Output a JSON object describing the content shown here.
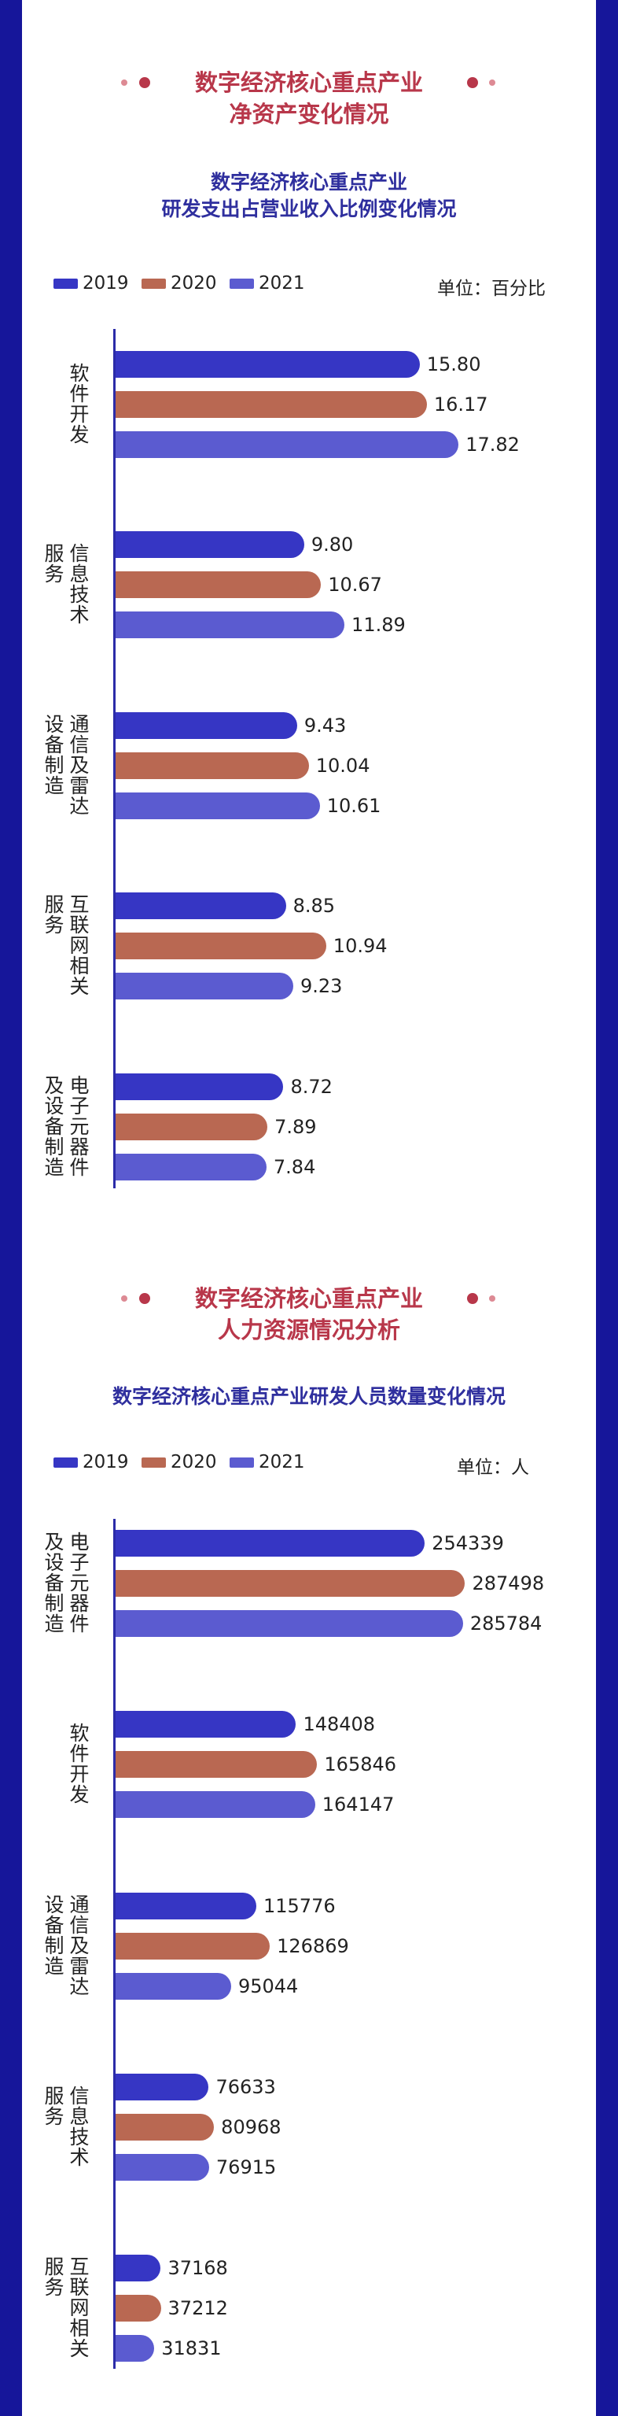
{
  "colors": {
    "2019": "#3636c4",
    "2020": "#b96852",
    "2021": "#5b5bd0",
    "frame": "#16169a",
    "header": "#b8374a",
    "title": "#2f2f9e"
  },
  "section1": {
    "header_line1": "数字经济核心重点产业",
    "header_line2": "净资产变化情况"
  },
  "section2": {
    "header_line1": "数字经济核心重点产业",
    "header_line2": "人力资源情况分析"
  },
  "chart_data": [
    {
      "type": "bar",
      "title_line1": "数字经济核心重点产业",
      "title_line2": "研发支出占营业收入比例变化情况",
      "unit": "单位：百分比",
      "legend": [
        "2019",
        "2020",
        "2021"
      ],
      "categories": [
        {
          "col_right": "软件开发",
          "col_left": ""
        },
        {
          "col_right": "信息技术",
          "col_left": "服务"
        },
        {
          "col_right": "通信及雷达",
          "col_left": "设备制造"
        },
        {
          "col_right": "互联网相关",
          "col_left": "服务"
        },
        {
          "col_right": "电子元器件",
          "col_left": "及设备制造"
        }
      ],
      "series": [
        {
          "name": "2019",
          "values": [
            15.8,
            9.8,
            9.43,
            8.85,
            8.72
          ],
          "labels": [
            "15.80",
            "9.80",
            "9.43",
            "8.85",
            "8.72"
          ]
        },
        {
          "name": "2020",
          "values": [
            16.17,
            10.67,
            10.04,
            10.94,
            7.89
          ],
          "labels": [
            "16.17",
            "10.67",
            "10.04",
            "10.94",
            "7.89"
          ]
        },
        {
          "name": "2021",
          "values": [
            17.82,
            11.89,
            10.61,
            9.23,
            7.84
          ],
          "labels": [
            "17.82",
            "11.89",
            "10.61",
            "9.23",
            "7.84"
          ]
        }
      ],
      "xlim": [
        0,
        19.2
      ]
    },
    {
      "type": "bar",
      "title_line1": "数字经济核心重点产业研发人员数量变化情况",
      "title_line2": "",
      "unit": "单位：人",
      "legend": [
        "2019",
        "2020",
        "2021"
      ],
      "categories": [
        {
          "col_right": "电子元器件",
          "col_left": "及设备制造"
        },
        {
          "col_right": "软件开发",
          "col_left": ""
        },
        {
          "col_right": "通信及雷达",
          "col_left": "设备制造"
        },
        {
          "col_right": "信息技术",
          "col_left": "服务"
        },
        {
          "col_right": "互联网相关",
          "col_left": "服务"
        }
      ],
      "series": [
        {
          "name": "2019",
          "values": [
            254339,
            148408,
            115776,
            76633,
            37168
          ],
          "labels": [
            "254339",
            "148408",
            "115776",
            "76633",
            "37168"
          ]
        },
        {
          "name": "2020",
          "values": [
            287498,
            165846,
            126869,
            80968,
            37212
          ],
          "labels": [
            "287498",
            "165846",
            "126869",
            "80968",
            "37212"
          ]
        },
        {
          "name": "2021",
          "values": [
            285784,
            164147,
            95044,
            76915,
            31831
          ],
          "labels": [
            "285784",
            "164147",
            "95044",
            "76915",
            "31831"
          ]
        }
      ],
      "xlim": [
        0,
        304000
      ]
    }
  ]
}
